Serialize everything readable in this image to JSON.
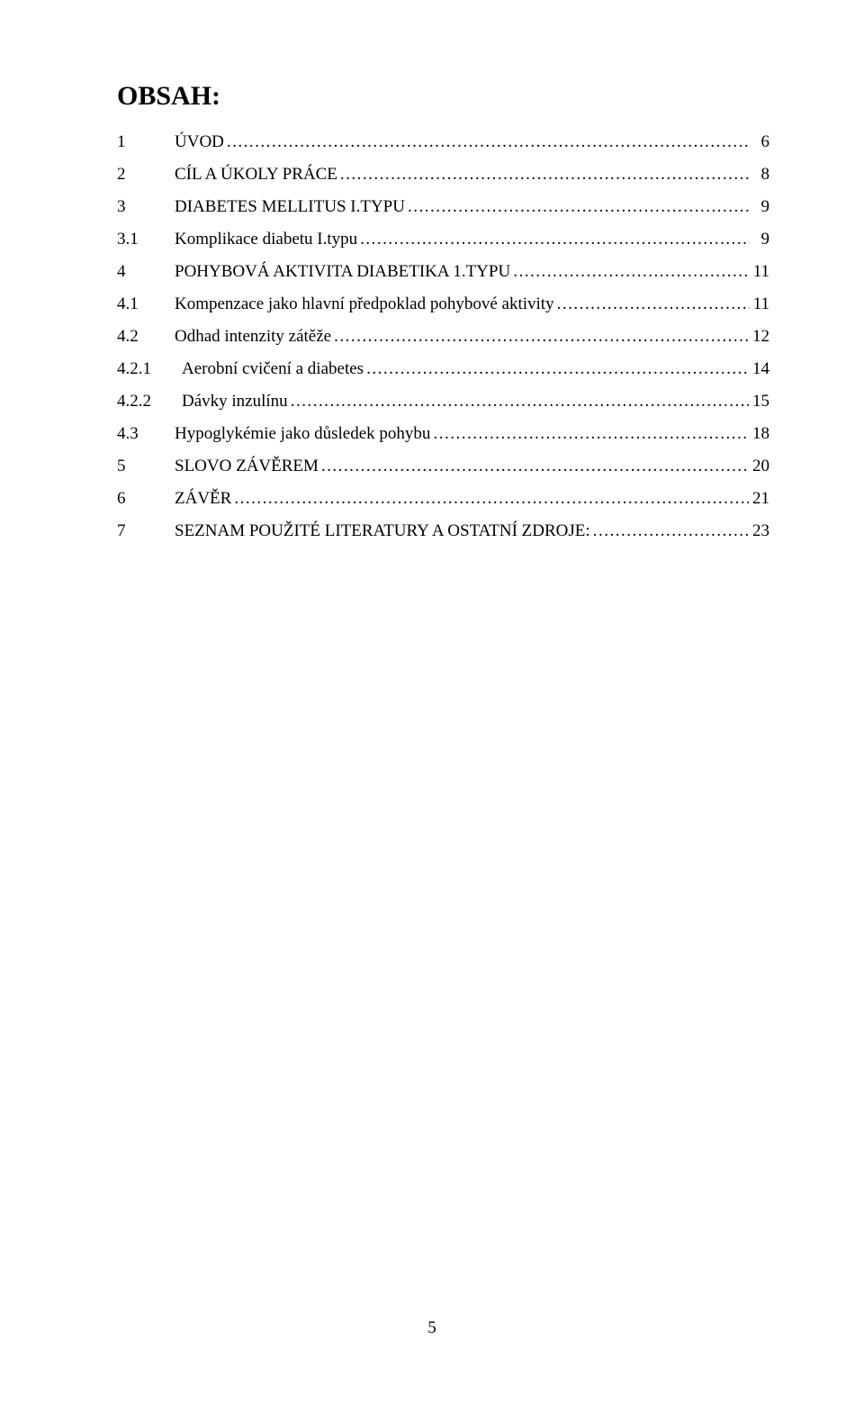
{
  "title": "OBSAH:",
  "footer_page": "5",
  "toc_fontsize": 19,
  "title_fontsize": 30,
  "text_color": "#000000",
  "background_color": "#ffffff",
  "entries": [
    {
      "num": "1",
      "level": 1,
      "text": "ÚVOD",
      "smallcaps": true,
      "page": "6"
    },
    {
      "num": "2",
      "level": 1,
      "text": "CÍL A ÚKOLY PRÁCE",
      "smallcaps": true,
      "page": "8"
    },
    {
      "num": "3",
      "level": 1,
      "text": "DIABETES MELLITUS I.TYPU",
      "smallcaps": true,
      "page": "9"
    },
    {
      "num": "3.1",
      "level": 2,
      "text": "Komplikace diabetu I.typu",
      "smallcaps": false,
      "page": "9"
    },
    {
      "num": "4",
      "level": 1,
      "text": "POHYBOVÁ AKTIVITA DIABETIKA 1.TYPU",
      "smallcaps": true,
      "page": "11"
    },
    {
      "num": "4.1",
      "level": 2,
      "text": "Kompenzace jako hlavní předpoklad pohybové aktivity",
      "smallcaps": false,
      "page": "11"
    },
    {
      "num": "4.2",
      "level": 2,
      "text": "Odhad intenzity zátěže",
      "smallcaps": false,
      "page": "12"
    },
    {
      "num": "4.2.1",
      "level": 3,
      "text": "Aerobní cvičení a diabetes",
      "smallcaps": false,
      "page": "14"
    },
    {
      "num": "4.2.2",
      "level": 3,
      "text": "Dávky inzulínu",
      "smallcaps": false,
      "page": "15"
    },
    {
      "num": "4.3",
      "level": 2,
      "text": "Hypoglykémie jako důsledek pohybu",
      "smallcaps": false,
      "page": "18"
    },
    {
      "num": "5",
      "level": 1,
      "text": "SLOVO ZÁVĚREM",
      "smallcaps": true,
      "page": "20"
    },
    {
      "num": "6",
      "level": 1,
      "text": "ZÁVĚR",
      "smallcaps": true,
      "page": "21"
    },
    {
      "num": "7",
      "level": 1,
      "text": "SEZNAM POUŽITÉ LITERATURY A OSTATNÍ ZDROJE:",
      "smallcaps": true,
      "page": "23"
    }
  ]
}
